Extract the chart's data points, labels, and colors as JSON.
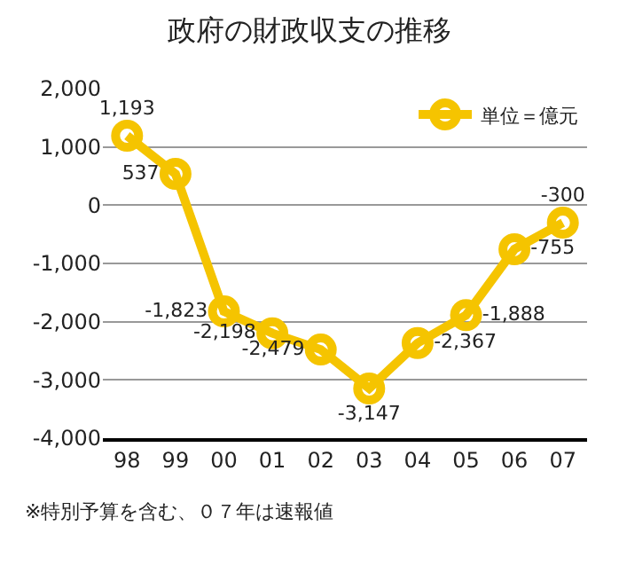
{
  "chart_data": {
    "type": "line",
    "title": "政府の財政収支の推移",
    "categories": [
      "98",
      "99",
      "00",
      "01",
      "02",
      "03",
      "04",
      "05",
      "06",
      "07"
    ],
    "series": [
      {
        "name": "単位＝億元",
        "color": "#f5c400",
        "values": [
          1193,
          537,
          -1823,
          -2198,
          -2479,
          -3147,
          -2367,
          -1888,
          -755,
          -300
        ],
        "value_labels": [
          "1,193",
          "537",
          "-1,823",
          "-2,198",
          "-2,479",
          "-3,147",
          "-2,367",
          "-1,888",
          "-755",
          "-300"
        ]
      }
    ],
    "ylim": [
      -4000,
      2000
    ],
    "yticks": [
      {
        "value": -4000,
        "label": "-4,000"
      },
      {
        "value": -3000,
        "label": "-3,000"
      },
      {
        "value": -2000,
        "label": "-2,000"
      },
      {
        "value": -1000,
        "label": "-1,000"
      },
      0,
      {
        "value": 1000,
        "label": "1,000"
      },
      {
        "value": 2000,
        "label": "2,000"
      }
    ],
    "grid": "y",
    "legend": "top right",
    "marker": "circle",
    "line_style": "solid",
    "annotations": [
      "※特別予算を含む、０７年は速報値"
    ]
  }
}
